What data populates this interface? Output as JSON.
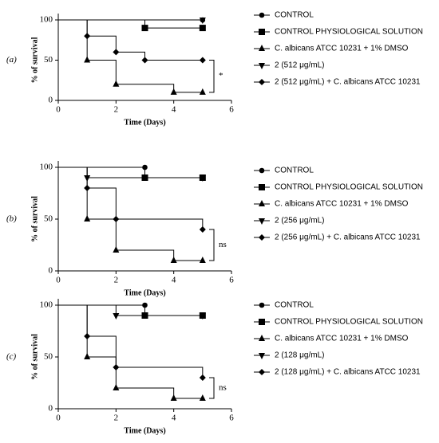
{
  "chart_data": [
    {
      "type": "step",
      "panel_label": "(a)",
      "xlabel": "Time (Days)",
      "ylabel": "% of survival",
      "xlim": [
        0,
        6
      ],
      "xticks": [
        0,
        2,
        4,
        6
      ],
      "ylim": [
        0,
        100
      ],
      "yticks": [
        0,
        50,
        100
      ],
      "annotation": "*",
      "series": [
        {
          "name": "CONTROL",
          "marker": "circle",
          "color": "#000000",
          "x": [
            0,
            5
          ],
          "values": [
            100,
            100
          ]
        },
        {
          "name": "CONTROL PHYSIOLOGICAL SOLUTION",
          "marker": "square",
          "color": "#000000",
          "x": [
            0,
            3,
            5
          ],
          "values": [
            100,
            90,
            90
          ]
        },
        {
          "name": "C. albicans ATCC 10231 + 1% DMSO",
          "marker": "triangle-up",
          "color": "#000000",
          "x": [
            0,
            1,
            2,
            4,
            5
          ],
          "values": [
            100,
            50,
            20,
            10,
            10
          ]
        },
        {
          "name": "2 (512 μg/mL)",
          "marker": "triangle-down",
          "color": "#000000",
          "x": [
            0,
            5
          ],
          "values": [
            100,
            100
          ]
        },
        {
          "name": "2 (512 μg/mL) + C. albicans ATCC 10231",
          "marker": "diamond",
          "color": "#000000",
          "x": [
            0,
            1,
            2,
            3,
            5
          ],
          "values": [
            100,
            80,
            60,
            50,
            50
          ]
        }
      ]
    },
    {
      "type": "step",
      "panel_label": "(b)",
      "xlabel": "Time (Days)",
      "ylabel": "% of survival",
      "xlim": [
        0,
        6
      ],
      "xticks": [
        0,
        2,
        4,
        6
      ],
      "ylim": [
        0,
        100
      ],
      "yticks": [
        0,
        50,
        100
      ],
      "annotation": "ns",
      "series": [
        {
          "name": "CONTROL",
          "marker": "circle",
          "color": "#000000",
          "x": [
            0,
            3
          ],
          "values": [
            100,
            100
          ]
        },
        {
          "name": "CONTROL PHYSIOLOGICAL SOLUTION",
          "marker": "square",
          "color": "#000000",
          "x": [
            0,
            3,
            5
          ],
          "values": [
            100,
            90,
            90
          ]
        },
        {
          "name": "C. albicans ATCC 10231 + 1% DMSO",
          "marker": "triangle-up",
          "color": "#000000",
          "x": [
            0,
            1,
            2,
            4,
            5
          ],
          "values": [
            100,
            50,
            20,
            10,
            10
          ]
        },
        {
          "name": "2 (256 μg/mL)",
          "marker": "triangle-down",
          "color": "#000000",
          "x": [
            0,
            1,
            5
          ],
          "values": [
            100,
            90,
            90
          ]
        },
        {
          "name": "2 (256 μg/mL) + C. albicans ATCC 10231",
          "marker": "diamond",
          "color": "#000000",
          "x": [
            0,
            1,
            2,
            5
          ],
          "values": [
            100,
            80,
            50,
            40
          ]
        }
      ]
    },
    {
      "type": "step",
      "panel_label": "(c)",
      "xlabel": "Time (Days)",
      "ylabel": "% of survival",
      "xlim": [
        0,
        6
      ],
      "xticks": [
        0,
        2,
        4,
        6
      ],
      "ylim": [
        0,
        100
      ],
      "yticks": [
        0,
        50,
        100
      ],
      "annotation": "ns",
      "series": [
        {
          "name": "CONTROL",
          "marker": "circle",
          "color": "#000000",
          "x": [
            0,
            3
          ],
          "values": [
            100,
            100
          ]
        },
        {
          "name": "CONTROL PHYSIOLOGICAL SOLUTION",
          "marker": "square",
          "color": "#000000",
          "x": [
            0,
            3,
            5
          ],
          "values": [
            100,
            90,
            90
          ]
        },
        {
          "name": "C. albicans ATCC 10231 + 1% DMSO",
          "marker": "triangle-up",
          "color": "#000000",
          "x": [
            0,
            1,
            2,
            4,
            5
          ],
          "values": [
            100,
            50,
            20,
            10,
            10
          ]
        },
        {
          "name": "2 (128 μg/mL)",
          "marker": "triangle-down",
          "color": "#000000",
          "x": [
            0,
            2,
            5
          ],
          "values": [
            100,
            90,
            90
          ]
        },
        {
          "name": "2 (128 μg/mL) + C. albicans ATCC 10231",
          "marker": "diamond",
          "color": "#000000",
          "x": [
            0,
            1,
            2,
            5
          ],
          "values": [
            100,
            70,
            40,
            30
          ]
        }
      ]
    }
  ]
}
